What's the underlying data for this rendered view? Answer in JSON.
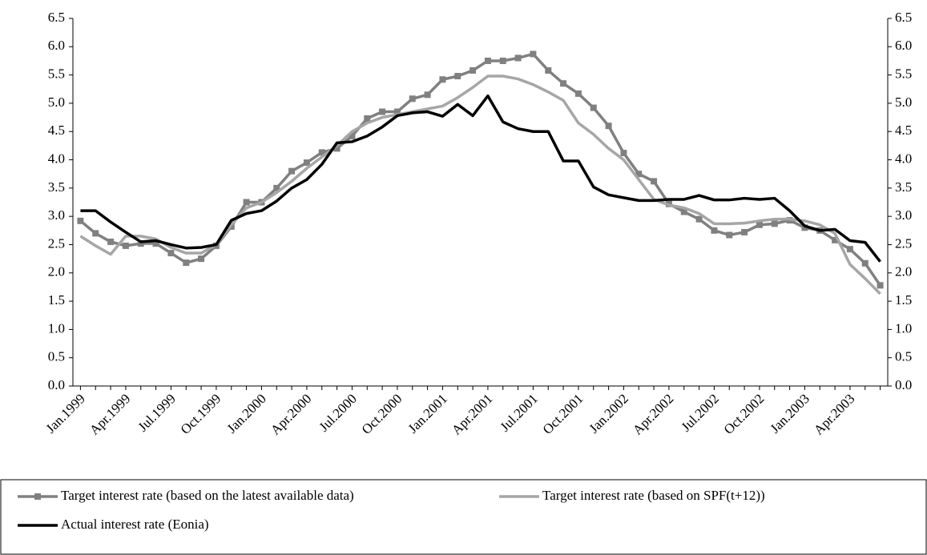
{
  "chart_data": {
    "type": "line",
    "categories": [
      "Jan.1999",
      null,
      null,
      "Apr.1999",
      null,
      null,
      "Jul.1999",
      null,
      null,
      "Oct.1999",
      null,
      null,
      "Jan.2000",
      null,
      null,
      "Apr.2000",
      null,
      null,
      "Jul.2000",
      null,
      null,
      "Oct.2000",
      null,
      null,
      "Jan.2001",
      null,
      null,
      "Apr.2001",
      null,
      null,
      "Jul.2001",
      null,
      null,
      "Oct.2001",
      null,
      null,
      "Jan.2002",
      null,
      null,
      "Apr.2002",
      null,
      null,
      "Jul.2002",
      null,
      null,
      "Oct.2002",
      null,
      null,
      "Jan.2003",
      null,
      null,
      "Apr.2003",
      null,
      null
    ],
    "series": [
      {
        "name": "Target interest rate (based on the latest available data)",
        "color": "#808080",
        "marker": true,
        "values": [
          2.92,
          2.7,
          2.55,
          2.48,
          2.52,
          2.52,
          2.35,
          2.18,
          2.25,
          2.48,
          2.82,
          3.25,
          3.25,
          3.5,
          3.8,
          3.95,
          4.13,
          4.2,
          4.42,
          4.73,
          4.85,
          4.85,
          5.08,
          5.15,
          5.42,
          5.48,
          5.58,
          5.75,
          5.75,
          5.8,
          5.87,
          5.58,
          5.35,
          5.17,
          4.92,
          4.6,
          4.12,
          3.75,
          3.62,
          3.22,
          3.08,
          2.95,
          2.75,
          2.67,
          2.72,
          2.85,
          2.87,
          2.93,
          2.8,
          2.75,
          2.58,
          2.42,
          2.17,
          1.78
        ]
      },
      {
        "name": "Target interest rate (based on SPF(t+12))",
        "color": "#a6a6a6",
        "marker": false,
        "values": [
          2.65,
          2.48,
          2.33,
          2.65,
          2.65,
          2.6,
          2.45,
          2.35,
          2.35,
          2.5,
          2.85,
          3.15,
          3.25,
          3.42,
          3.62,
          3.85,
          4.05,
          4.25,
          4.5,
          4.65,
          4.75,
          4.8,
          4.85,
          4.9,
          4.95,
          5.1,
          5.28,
          5.48,
          5.48,
          5.43,
          5.33,
          5.2,
          5.05,
          4.65,
          4.45,
          4.2,
          4.0,
          3.65,
          3.3,
          3.2,
          3.15,
          3.05,
          2.87,
          2.87,
          2.88,
          2.92,
          2.95,
          2.95,
          2.92,
          2.85,
          2.7,
          2.15,
          1.9,
          1.63
        ]
      },
      {
        "name": "Actual interest rate (Eonia)",
        "color": "#000000",
        "marker": false,
        "values": [
          3.1,
          3.1,
          2.9,
          2.72,
          2.55,
          2.57,
          2.5,
          2.44,
          2.45,
          2.5,
          2.93,
          3.05,
          3.1,
          3.27,
          3.5,
          3.65,
          3.92,
          4.3,
          4.32,
          4.42,
          4.58,
          4.78,
          4.83,
          4.85,
          4.77,
          4.98,
          4.78,
          5.13,
          4.67,
          4.55,
          4.5,
          4.5,
          3.98,
          3.98,
          3.52,
          3.38,
          3.33,
          3.28,
          3.28,
          3.3,
          3.3,
          3.37,
          3.29,
          3.29,
          3.32,
          3.3,
          3.32,
          3.1,
          2.83,
          2.75,
          2.77,
          2.57,
          2.54,
          2.2
        ]
      }
    ],
    "ylim": [
      0,
      6.5
    ],
    "yticks": [
      {
        "value": 0,
        "label": "0.0"
      },
      {
        "value": 0.5,
        "label": "0.5"
      },
      {
        "value": 1,
        "label": "1.0"
      },
      {
        "value": 1.5,
        "label": "1.5"
      },
      {
        "value": 2,
        "label": "2.0"
      },
      {
        "value": 2.5,
        "label": "2.5"
      },
      {
        "value": 3,
        "label": "3.0"
      },
      {
        "value": 3.5,
        "label": "3.5"
      },
      {
        "value": 4,
        "label": "4.0"
      },
      {
        "value": 4.5,
        "label": "4.5"
      },
      {
        "value": 5,
        "label": "5.0"
      },
      {
        "value": 5.5,
        "label": "5.5"
      },
      {
        "value": 6,
        "label": "6.0"
      },
      {
        "value": 6.5,
        "label": "6.5"
      }
    ],
    "y2lim": [
      0,
      6.5
    ],
    "y2ticks": [
      {
        "value": 0,
        "label": "0.0"
      },
      {
        "value": 0.5,
        "label": "0.5"
      },
      {
        "value": 1,
        "label": "1.0"
      },
      {
        "value": 1.5,
        "label": "1.5"
      },
      {
        "value": 2,
        "label": "2.0"
      },
      {
        "value": 2.5,
        "label": "2.5"
      },
      {
        "value": 3,
        "label": "3.0"
      },
      {
        "value": 3.5,
        "label": "3.5"
      },
      {
        "value": 4,
        "label": "4.0"
      },
      {
        "value": 4.5,
        "label": "4.5"
      },
      {
        "value": 5,
        "label": "5.0"
      },
      {
        "value": 5.5,
        "label": "5.5"
      },
      {
        "value": 6,
        "label": "6.0"
      },
      {
        "value": 6.5,
        "label": "6.5"
      }
    ],
    "grid": false,
    "legend": "bottom"
  }
}
